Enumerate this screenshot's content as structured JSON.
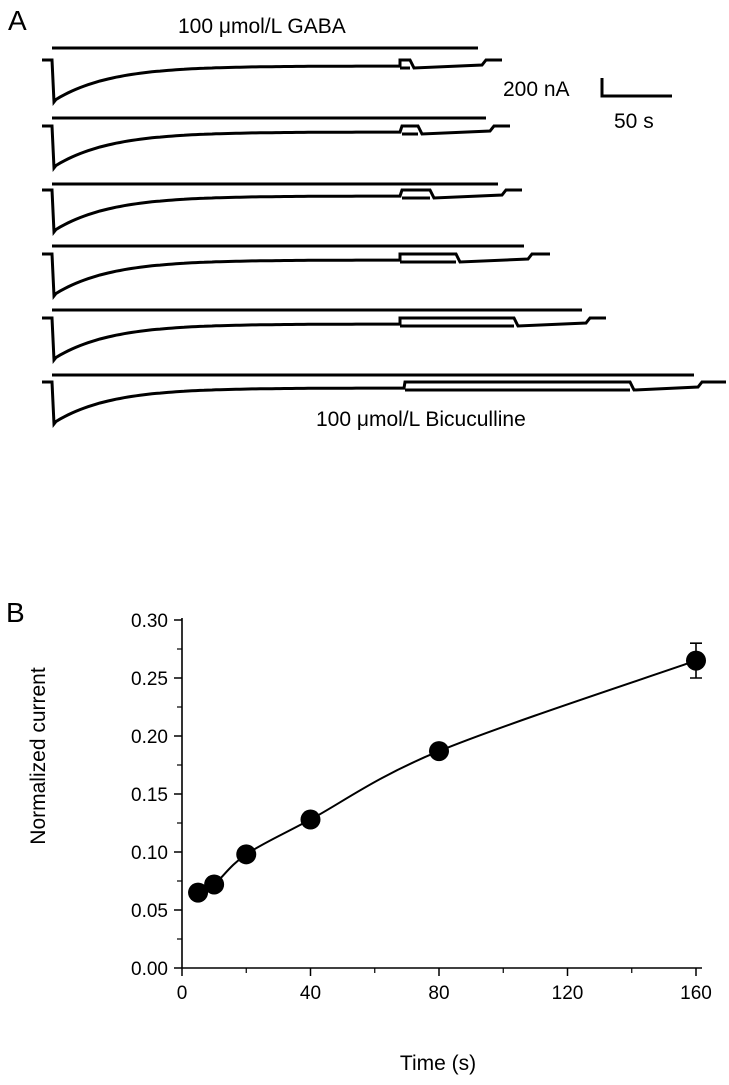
{
  "panel_a": {
    "letter": "A",
    "gaba_label": "100 μmol/L GABA",
    "bicuculline_label": "100 μmol/L Bicuculline",
    "scale_current": "200 nA",
    "scale_time": "50 s"
  },
  "panel_b": {
    "letter": "B"
  },
  "chart_data": [
    {
      "type": "line",
      "title": "",
      "note": "Panel A: six inward current traces evoked by 100 μmol/L GABA; bicuculline applied during the trace, with application duration increasing from top to bottom trace.",
      "series": [
        {
          "name": "trace-1"
        },
        {
          "name": "trace-2"
        },
        {
          "name": "trace-3"
        },
        {
          "name": "trace-4"
        },
        {
          "name": "trace-5"
        },
        {
          "name": "trace-6"
        }
      ],
      "annotations": [
        "100 μmol/L GABA",
        "100 μmol/L Bicuculline",
        "200 nA",
        "50 s"
      ]
    },
    {
      "type": "scatter",
      "title": "",
      "xlabel": "Time (s)",
      "ylabel": "Normalized current",
      "xlim": [
        0,
        160
      ],
      "ylim": [
        0,
        0.3
      ],
      "x_ticks": [
        "0",
        "40",
        "80",
        "120",
        "160"
      ],
      "y_ticks": [
        "0.00",
        "0.05",
        "0.10",
        "0.15",
        "0.20",
        "0.25",
        "0.30"
      ],
      "grid": false,
      "x": [
        5,
        10,
        20,
        40,
        80,
        160
      ],
      "y": [
        0.065,
        0.072,
        0.098,
        0.128,
        0.187,
        0.265
      ],
      "error": [
        0.003,
        0.003,
        0.003,
        0.005,
        0.003,
        0.015
      ],
      "fit_curve": true
    }
  ]
}
